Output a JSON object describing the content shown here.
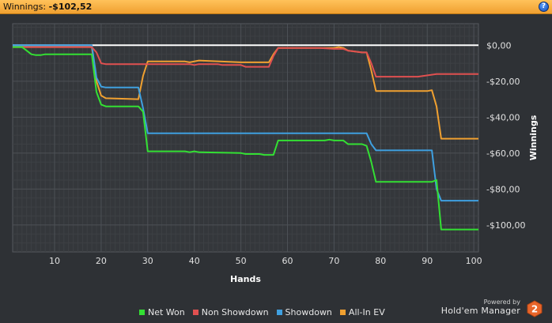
{
  "window": {
    "title_label": "Winnings:",
    "title_value": "-$102,52",
    "help_symbol": "?"
  },
  "branding": {
    "powered_by": "Powered by",
    "product": "Hold'em Manager",
    "version": "2"
  },
  "chart_data": {
    "type": "line",
    "xlabel": "Hands",
    "ylabel": "Winnings",
    "xlim": [
      1,
      101
    ],
    "ylim": [
      -115,
      12
    ],
    "x_ticks": [
      10,
      20,
      30,
      40,
      50,
      60,
      70,
      80,
      90,
      100
    ],
    "y_ticks": [
      0,
      -20,
      -40,
      -60,
      -80,
      -100
    ],
    "y_tick_labels": [
      "$0,00",
      "-$20,00",
      "-$40,00",
      "-$60,00",
      "-$80,00",
      "-$100,00"
    ],
    "grid": true,
    "legend_position": "bottom",
    "zero_line_color": "#ffffff",
    "series": [
      {
        "name": "Net Won",
        "color": "#33e033",
        "x": [
          1,
          3,
          4,
          5,
          6,
          7,
          8,
          18,
          19,
          20,
          21,
          28,
          29,
          30,
          38,
          39,
          40,
          41,
          50,
          51,
          54,
          55,
          57,
          58,
          68,
          69,
          70,
          72,
          73,
          76,
          77,
          78,
          79,
          91,
          92,
          93,
          101
        ],
        "y": [
          -1,
          -1,
          -3,
          -5,
          -5.5,
          -5.5,
          -5,
          -5,
          -26,
          -33,
          -34,
          -34,
          -37,
          -59,
          -59,
          -59.5,
          -59,
          -59.5,
          -60,
          -60.5,
          -60.5,
          -61,
          -61,
          -53,
          -53,
          -52.5,
          -53,
          -53,
          -55,
          -55,
          -56,
          -65,
          -76,
          -76,
          -75,
          -102.5,
          -102.5
        ]
      },
      {
        "name": "Non Showdown",
        "color": "#e05050",
        "x": [
          1,
          18,
          19,
          20,
          21,
          28,
          29,
          30,
          39,
          40,
          41,
          45,
          46,
          50,
          51,
          56,
          57,
          58,
          60,
          66,
          67,
          70,
          72,
          73,
          76,
          77,
          78,
          79,
          88,
          92,
          101
        ],
        "y": [
          -1,
          -1,
          -4,
          -10,
          -10.5,
          -10.5,
          -10.5,
          -10.5,
          -10.5,
          -11,
          -10.5,
          -10.5,
          -11,
          -11,
          -12,
          -12,
          -6,
          -1.5,
          -1.5,
          -1.5,
          -1.5,
          -2,
          -2,
          -3,
          -4,
          -4,
          -10,
          -17.5,
          -17.5,
          -16,
          -16
        ]
      },
      {
        "name": "Showdown",
        "color": "#3fa0e0",
        "x": [
          1,
          18,
          19,
          20,
          21,
          28,
          29,
          30,
          77,
          78,
          79,
          91,
          92,
          93,
          101
        ],
        "y": [
          0,
          0,
          -18,
          -23,
          -23.5,
          -23.5,
          -35,
          -49,
          -49,
          -55,
          -58.5,
          -58.5,
          -80,
          -86.5,
          -86.5
        ]
      },
      {
        "name": "All-In EV",
        "color": "#f0a030",
        "x": [
          1,
          18,
          19,
          20,
          21,
          28,
          29,
          30,
          38,
          39,
          41,
          50,
          56,
          57,
          58,
          70,
          71,
          72,
          73,
          76,
          77,
          78,
          79,
          90,
          91,
          92,
          93,
          101
        ],
        "y": [
          -1,
          -1,
          -20,
          -28,
          -29.5,
          -30,
          -17,
          -9,
          -9,
          -9.5,
          -8.5,
          -9.5,
          -9.5,
          -5,
          -1.5,
          -1.5,
          -1,
          -1.5,
          -3,
          -4,
          -4,
          -14,
          -25.5,
          -25.5,
          -25,
          -34,
          -52,
          -52
        ]
      }
    ]
  }
}
